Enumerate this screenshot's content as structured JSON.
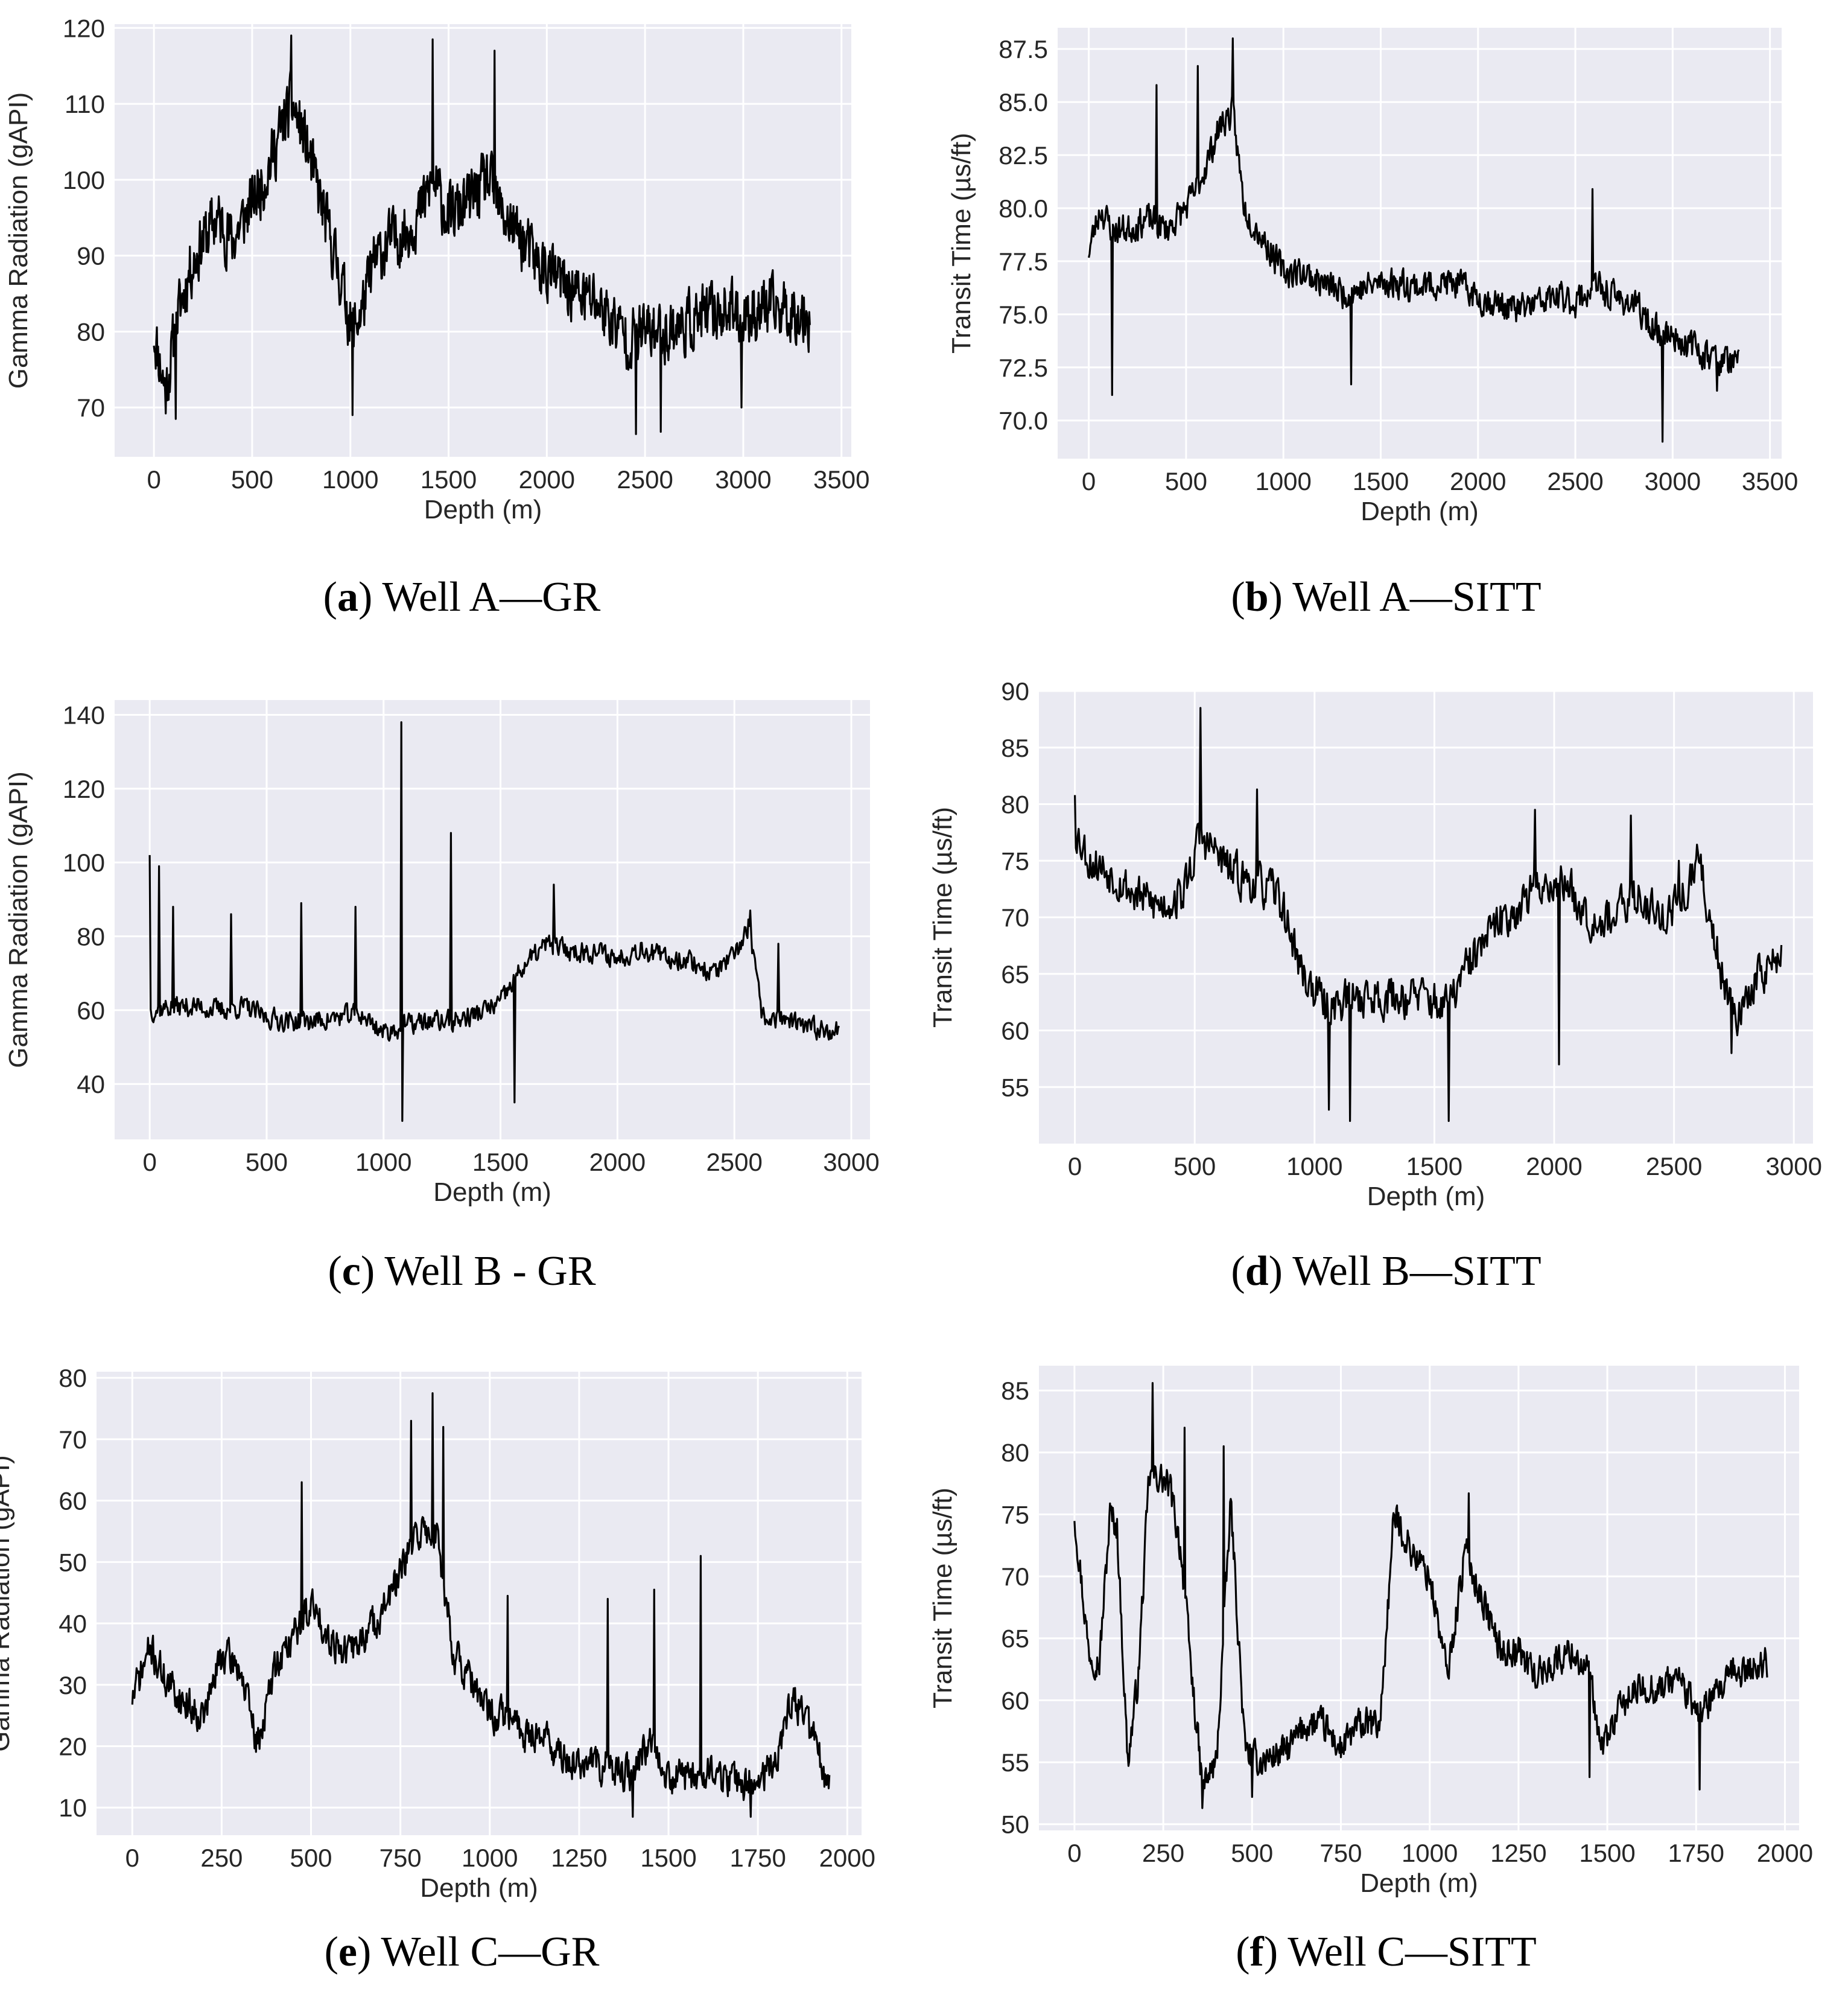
{
  "colors": {
    "plot_bg": "#eaeaf2",
    "grid": "#ffffff",
    "line": "#000000",
    "text": "#262626"
  },
  "chart_data": [
    {
      "id": "a",
      "type": "line",
      "caption_letter": "a",
      "caption_text": "Well A—GR",
      "xlabel": "Depth (m)",
      "ylabel": "Gamma Radiation (gAPI)",
      "xlim": [
        -200,
        3550
      ],
      "ylim": [
        63.5,
        120.5
      ],
      "xticks": [
        0,
        500,
        1000,
        1500,
        2000,
        2500,
        3000,
        3500
      ],
      "yticks": [
        70,
        80,
        90,
        100,
        110,
        120
      ],
      "x_range": [
        0,
        3340
      ],
      "anchors": [
        [
          0,
          80
        ],
        [
          60,
          72
        ],
        [
          120,
          82
        ],
        [
          180,
          88
        ],
        [
          250,
          92
        ],
        [
          320,
          95
        ],
        [
          400,
          92
        ],
        [
          480,
          96
        ],
        [
          560,
          100
        ],
        [
          640,
          106
        ],
        [
          700,
          110
        ],
        [
          760,
          106
        ],
        [
          820,
          100
        ],
        [
          880,
          94
        ],
        [
          960,
          86
        ],
        [
          1010,
          80
        ],
        [
          1060,
          83
        ],
        [
          1120,
          89
        ],
        [
          1200,
          92
        ],
        [
          1280,
          93
        ],
        [
          1360,
          96
        ],
        [
          1420,
          100
        ],
        [
          1500,
          95
        ],
        [
          1600,
          97
        ],
        [
          1700,
          100
        ],
        [
          1760,
          96
        ],
        [
          1850,
          93
        ],
        [
          1950,
          89
        ],
        [
          2050,
          87
        ],
        [
          2150,
          85
        ],
        [
          2250,
          84
        ],
        [
          2350,
          81
        ],
        [
          2420,
          79
        ],
        [
          2500,
          80
        ],
        [
          2600,
          80
        ],
        [
          2700,
          81
        ],
        [
          2800,
          82
        ],
        [
          2900,
          83
        ],
        [
          3000,
          82
        ],
        [
          3100,
          83
        ],
        [
          3200,
          83
        ],
        [
          3340,
          82
        ]
      ],
      "amp": 5.5,
      "seed": 11,
      "step": 3,
      "spikes": [
        [
          700,
          119
        ],
        [
          1420,
          118.5
        ],
        [
          1735,
          117
        ],
        [
          370,
          88
        ],
        [
          1010,
          69
        ],
        [
          2455,
          66.5
        ],
        [
          2580,
          66.8
        ],
        [
          2990,
          70
        ],
        [
          110,
          68.5
        ]
      ]
    },
    {
      "id": "b",
      "type": "line",
      "caption_letter": "b",
      "caption_text": "Well A—SITT",
      "xlabel": "Depth (m)",
      "ylabel": "Transit Time (µs/ft)",
      "xlim": [
        -160,
        3560
      ],
      "ylim": [
        68.2,
        88.5
      ],
      "xticks": [
        0,
        500,
        1000,
        1500,
        2000,
        2500,
        3000,
        3500
      ],
      "yticks": [
        70.0,
        72.5,
        75.0,
        77.5,
        80.0,
        82.5,
        85.0,
        87.5
      ],
      "ytick_decimals": 1,
      "x_range": [
        0,
        3340
      ],
      "anchors": [
        [
          0,
          78
        ],
        [
          60,
          80
        ],
        [
          120,
          79
        ],
        [
          200,
          79
        ],
        [
          300,
          79.5
        ],
        [
          400,
          79
        ],
        [
          500,
          80
        ],
        [
          560,
          81
        ],
        [
          620,
          82.5
        ],
        [
          680,
          84
        ],
        [
          740,
          84.5
        ],
        [
          800,
          80
        ],
        [
          900,
          78.5
        ],
        [
          1000,
          77
        ],
        [
          1100,
          77
        ],
        [
          1200,
          76.5
        ],
        [
          1300,
          76
        ],
        [
          1400,
          76.2
        ],
        [
          1500,
          76.5
        ],
        [
          1600,
          76.5
        ],
        [
          1700,
          76.3
        ],
        [
          1800,
          76.5
        ],
        [
          1900,
          76.4
        ],
        [
          2000,
          75.8
        ],
        [
          2100,
          75.5
        ],
        [
          2200,
          75.2
        ],
        [
          2300,
          75.5
        ],
        [
          2400,
          75.8
        ],
        [
          2500,
          75.6
        ],
        [
          2600,
          76.3
        ],
        [
          2700,
          75.8
        ],
        [
          2800,
          75.5
        ],
        [
          2900,
          74.3
        ],
        [
          3000,
          74
        ],
        [
          3100,
          73.5
        ],
        [
          3200,
          73
        ],
        [
          3340,
          72.6
        ]
      ],
      "amp": 1.0,
      "seed": 23,
      "step": 4,
      "spikes": [
        [
          120,
          71.2
        ],
        [
          350,
          85.8
        ],
        [
          560,
          86.7
        ],
        [
          740,
          88
        ],
        [
          2590,
          80.9
        ],
        [
          2950,
          69
        ],
        [
          3230,
          71.4
        ],
        [
          1350,
          71.7
        ]
      ]
    },
    {
      "id": "c",
      "type": "line",
      "caption_letter": "c",
      "caption_text": "Well B - GR",
      "xlabel": "Depth (m)",
      "ylabel": "Gamma Radiation (gAPI)",
      "xlim": [
        -150,
        3080
      ],
      "ylim": [
        25,
        144
      ],
      "xticks": [
        0,
        500,
        1000,
        1500,
        2000,
        2500,
        3000
      ],
      "yticks": [
        40,
        60,
        80,
        100,
        120,
        140
      ],
      "x_range": [
        0,
        2950
      ],
      "anchors": [
        [
          0,
          60
        ],
        [
          100,
          61
        ],
        [
          200,
          61
        ],
        [
          300,
          60
        ],
        [
          400,
          61
        ],
        [
          500,
          58
        ],
        [
          600,
          57
        ],
        [
          700,
          57
        ],
        [
          800,
          58
        ],
        [
          900,
          59
        ],
        [
          1000,
          54
        ],
        [
          1100,
          56
        ],
        [
          1200,
          57
        ],
        [
          1300,
          57
        ],
        [
          1400,
          59
        ],
        [
          1500,
          62
        ],
        [
          1600,
          72
        ],
        [
          1700,
          78
        ],
        [
          1800,
          76
        ],
        [
          1900,
          76
        ],
        [
          2000,
          74
        ],
        [
          2100,
          77
        ],
        [
          2200,
          74
        ],
        [
          2300,
          74
        ],
        [
          2400,
          70
        ],
        [
          2500,
          74
        ],
        [
          2560,
          83
        ],
        [
          2620,
          58
        ],
        [
          2700,
          58
        ],
        [
          2800,
          55
        ],
        [
          2950,
          55
        ]
      ],
      "amp": 4.0,
      "seed": 37,
      "step": 4,
      "spikes": [
        [
          0,
          102
        ],
        [
          40,
          99
        ],
        [
          100,
          88
        ],
        [
          350,
          86
        ],
        [
          650,
          89
        ],
        [
          880,
          88
        ],
        [
          1075,
          138
        ],
        [
          1290,
          108
        ],
        [
          1080,
          30
        ],
        [
          1560,
          35
        ],
        [
          1730,
          94
        ],
        [
          2690,
          78
        ],
        [
          2570,
          87
        ]
      ]
    },
    {
      "id": "d",
      "type": "line",
      "caption_letter": "d",
      "caption_text": "Well B—SITT",
      "xlabel": "Depth (m)",
      "ylabel": "Transit Time (µs/ft)",
      "xlim": [
        -150,
        3080
      ],
      "ylim": [
        50,
        90
      ],
      "xticks": [
        0,
        500,
        1000,
        1500,
        2000,
        2500,
        3000
      ],
      "yticks": [
        55,
        60,
        65,
        70,
        75,
        80,
        85,
        90
      ],
      "x_range": [
        0,
        2950
      ],
      "anchors": [
        [
          0,
          78
        ],
        [
          60,
          75
        ],
        [
          150,
          74
        ],
        [
          250,
          72
        ],
        [
          350,
          71
        ],
        [
          450,
          72
        ],
        [
          520,
          77
        ],
        [
          580,
          76
        ],
        [
          650,
          74
        ],
        [
          750,
          73
        ],
        [
          850,
          72
        ],
        [
          950,
          65
        ],
        [
          1050,
          62
        ],
        [
          1150,
          63
        ],
        [
          1250,
          63
        ],
        [
          1350,
          63
        ],
        [
          1450,
          63
        ],
        [
          1550,
          62
        ],
        [
          1650,
          66
        ],
        [
          1750,
          69
        ],
        [
          1850,
          71
        ],
        [
          1950,
          73
        ],
        [
          2050,
          73
        ],
        [
          2150,
          70
        ],
        [
          2250,
          70
        ],
        [
          2350,
          72
        ],
        [
          2450,
          70
        ],
        [
          2550,
          72
        ],
        [
          2600,
          75
        ],
        [
          2700,
          65
        ],
        [
          2780,
          61
        ],
        [
          2850,
          65
        ],
        [
          2950,
          66.5
        ]
      ],
      "amp": 2.6,
      "seed": 53,
      "step": 4,
      "spikes": [
        [
          0,
          80.8
        ],
        [
          525,
          88.5
        ],
        [
          760,
          81.3
        ],
        [
          1060,
          53
        ],
        [
          1150,
          52
        ],
        [
          1560,
          52
        ],
        [
          1920,
          79.5
        ],
        [
          2020,
          57
        ],
        [
          2320,
          79
        ],
        [
          2520,
          75
        ],
        [
          2740,
          58
        ]
      ]
    },
    {
      "id": "e",
      "type": "line",
      "caption_letter": "e",
      "caption_text": "Well C—GR",
      "xlabel": "Depth (m)",
      "ylabel": "Gamma Radiation (gAPI)",
      "xlim": [
        -100,
        2040
      ],
      "ylim": [
        5.5,
        81
      ],
      "xticks": [
        0,
        250,
        500,
        750,
        1000,
        1250,
        1500,
        1750,
        2000
      ],
      "yticks": [
        10,
        20,
        30,
        40,
        50,
        60,
        70,
        80
      ],
      "x_range": [
        0,
        1950
      ],
      "anchors": [
        [
          0,
          28
        ],
        [
          50,
          36
        ],
        [
          100,
          30
        ],
        [
          150,
          27
        ],
        [
          200,
          25
        ],
        [
          250,
          35
        ],
        [
          300,
          33
        ],
        [
          350,
          20
        ],
        [
          400,
          33
        ],
        [
          450,
          38
        ],
        [
          500,
          43
        ],
        [
          550,
          38
        ],
        [
          600,
          35
        ],
        [
          650,
          38
        ],
        [
          700,
          42
        ],
        [
          750,
          48
        ],
        [
          800,
          55
        ],
        [
          850,
          55
        ],
        [
          900,
          35
        ],
        [
          950,
          30
        ],
        [
          1000,
          25
        ],
        [
          1050,
          25
        ],
        [
          1100,
          22
        ],
        [
          1150,
          22
        ],
        [
          1200,
          18
        ],
        [
          1250,
          17
        ],
        [
          1300,
          17
        ],
        [
          1350,
          16
        ],
        [
          1400,
          15
        ],
        [
          1450,
          22
        ],
        [
          1500,
          15
        ],
        [
          1550,
          15
        ],
        [
          1600,
          16
        ],
        [
          1650,
          15
        ],
        [
          1700,
          14
        ],
        [
          1750,
          14
        ],
        [
          1800,
          18
        ],
        [
          1850,
          28
        ],
        [
          1900,
          22
        ],
        [
          1950,
          13
        ]
      ],
      "amp": 4.0,
      "seed": 71,
      "step": 2,
      "spikes": [
        [
          475,
          63
        ],
        [
          780,
          73
        ],
        [
          840,
          77.5
        ],
        [
          870,
          72
        ],
        [
          1590,
          51
        ],
        [
          1460,
          45.5
        ],
        [
          1330,
          44
        ],
        [
          1050,
          44.5
        ],
        [
          1400,
          8.5
        ],
        [
          1730,
          8.5
        ]
      ]
    },
    {
      "id": "f",
      "type": "line",
      "caption_letter": "f",
      "caption_text": "Well C—SITT",
      "xlabel": "Depth (m)",
      "ylabel": "Transit Time (µs/ft)",
      "xlim": [
        -100,
        2040
      ],
      "ylim": [
        49.5,
        87
      ],
      "xticks": [
        0,
        250,
        500,
        750,
        1000,
        1250,
        1500,
        1750,
        2000
      ],
      "yticks": [
        50,
        55,
        60,
        65,
        70,
        75,
        80,
        85
      ],
      "x_range": [
        0,
        1950
      ],
      "anchors": [
        [
          0,
          75
        ],
        [
          40,
          64
        ],
        [
          70,
          63
        ],
        [
          100,
          75
        ],
        [
          120,
          74
        ],
        [
          150,
          55
        ],
        [
          180,
          62
        ],
        [
          210,
          78
        ],
        [
          240,
          78
        ],
        [
          270,
          77
        ],
        [
          300,
          72
        ],
        [
          330,
          62
        ],
        [
          360,
          53
        ],
        [
          400,
          55
        ],
        [
          440,
          76
        ],
        [
          480,
          56
        ],
        [
          520,
          55
        ],
        [
          600,
          56
        ],
        [
          650,
          58
        ],
        [
          700,
          58
        ],
        [
          750,
          56
        ],
        [
          800,
          58
        ],
        [
          860,
          58
        ],
        [
          900,
          75
        ],
        [
          950,
          72
        ],
        [
          1000,
          70
        ],
        [
          1050,
          62
        ],
        [
          1100,
          72
        ],
        [
          1150,
          68
        ],
        [
          1200,
          64
        ],
        [
          1250,
          64
        ],
        [
          1300,
          62
        ],
        [
          1350,
          63
        ],
        [
          1400,
          64
        ],
        [
          1450,
          62
        ],
        [
          1480,
          56
        ],
        [
          1550,
          60
        ],
        [
          1600,
          61
        ],
        [
          1650,
          61
        ],
        [
          1700,
          62
        ],
        [
          1750,
          59
        ],
        [
          1800,
          60
        ],
        [
          1850,
          62
        ],
        [
          1950,
          63
        ]
      ],
      "amp": 1.8,
      "seed": 97,
      "step": 2,
      "spikes": [
        [
          220,
          85.6
        ],
        [
          310,
          82
        ],
        [
          420,
          80.5
        ],
        [
          1110,
          76.7
        ],
        [
          360,
          51.3
        ],
        [
          500,
          52.2
        ],
        [
          1760,
          52.8
        ],
        [
          1450,
          53.8
        ]
      ]
    }
  ]
}
